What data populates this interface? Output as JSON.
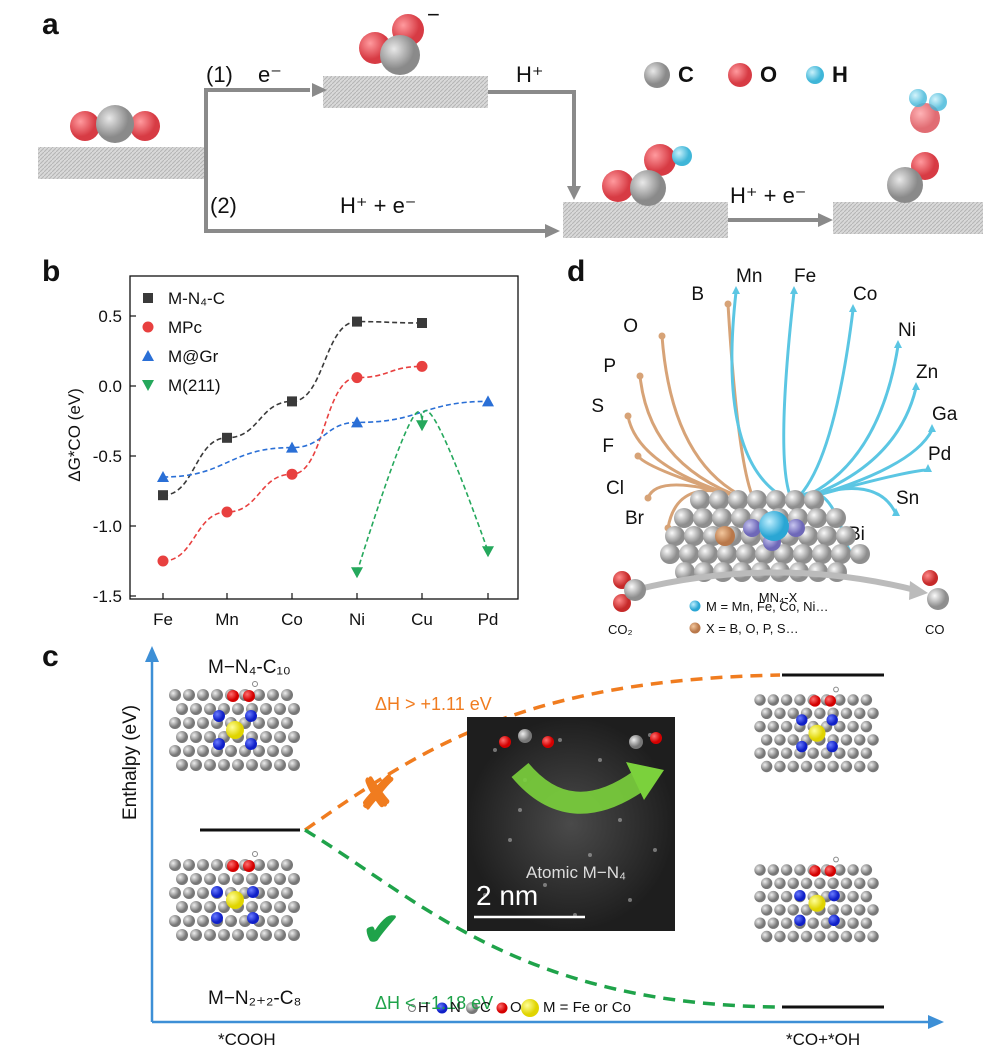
{
  "panel_a": {
    "letter": "a",
    "path1_label": "(1)",
    "electron1": "e⁻",
    "anion_charge": "−",
    "proton": "H⁺",
    "path2_label": "(2)",
    "pcet": "H⁺ + e⁻",
    "pcet2": "H⁺ + e⁻",
    "legend": [
      {
        "symbol": "C",
        "color": "#9a9a9a"
      },
      {
        "symbol": "O",
        "color": "#e8535a"
      },
      {
        "symbol": "H",
        "color": "#5bc6e3"
      }
    ]
  },
  "panel_b": {
    "letter": "b",
    "legend": [
      "M-N₄-C",
      "MPc",
      "M@Gr",
      "M(211)"
    ],
    "ylabel": "ΔG*CO (eV)"
  },
  "panel_c": {
    "letter": "c",
    "ylabel": "Enthalpy (eV)",
    "xstart": "*COOH",
    "xend": "*CO+*OH",
    "top_struct": "M−N₄-C₁₀",
    "bottom_struct": "M−N₂₊₂-C₈",
    "dh_up": "ΔH > +1.11 eV",
    "dh_down": "ΔH < −1.18 eV",
    "micro_label": "Atomic M−N₄",
    "scale_bar": "2 nm",
    "legend_h": "H",
    "legend_n": "N",
    "legend_c": "C",
    "legend_o": "O",
    "legend_m": "M = Fe or Co",
    "cross": "✘",
    "check": "✔"
  },
  "panel_d": {
    "letter": "d",
    "x_elements": [
      "Br",
      "Cl",
      "F",
      "S",
      "P",
      "O",
      "B"
    ],
    "m_elements": [
      "Mn",
      "Fe",
      "Co",
      "Ni",
      "Zn",
      "Ga",
      "Pd",
      "Sn",
      "Bi"
    ],
    "center_label": "MN₄-X",
    "m_def": "M = Mn, Fe, Co, Ni…",
    "x_def": "X = B, O, P, S…",
    "co2": "CO₂",
    "co": "CO"
  },
  "chart_data": {
    "type": "line",
    "categories": [
      "Fe",
      "Mn",
      "Co",
      "Ni",
      "Cu",
      "Pd"
    ],
    "ylabel": "ΔG*CO (eV)",
    "ylim": [
      -1.5,
      0.5
    ],
    "yticks": [
      "0.5",
      "0.0",
      "-0.5",
      "-1.0",
      "-1.5"
    ],
    "series": [
      {
        "name": "M-N₄-C",
        "marker": "square",
        "color": "#3a3a3a",
        "values": {
          "Fe": -0.78,
          "Mn": -0.37,
          "Co": -0.11,
          "Ni": 0.46,
          "Cu": 0.45
        }
      },
      {
        "name": "MPc",
        "marker": "circle",
        "color": "#e8403f",
        "values": {
          "Fe": -1.25,
          "Mn": -0.9,
          "Co": -0.63,
          "Ni": 0.06,
          "Cu": 0.14
        }
      },
      {
        "name": "M@Gr",
        "marker": "triangle-up",
        "color": "#2a6fd6",
        "values": {
          "Fe": -0.65,
          "Co": -0.44,
          "Ni": -0.26,
          "Pd": -0.11
        }
      },
      {
        "name": "M(211)",
        "marker": "triangle-down",
        "color": "#25a85c",
        "values": {
          "Ni": -1.33,
          "Cu": -0.28,
          "Pd": -1.18
        }
      }
    ]
  }
}
